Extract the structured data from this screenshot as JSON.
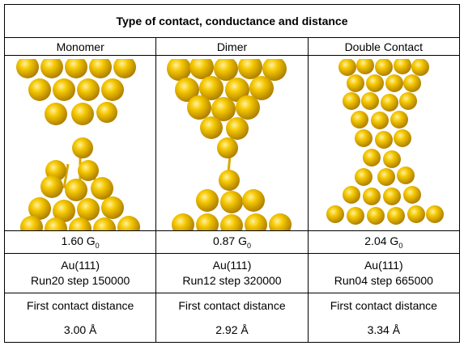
{
  "table": {
    "title": "Type of contact, conductance and distance",
    "columns": [
      "Monomer",
      "Dimer",
      "Double Contact"
    ],
    "conductance": [
      {
        "text": "1.60 G",
        "subscript": "0"
      },
      {
        "text": "0.87 G",
        "subscript": "0"
      },
      {
        "text": "2.04 G",
        "subscript": "0"
      }
    ],
    "surface": [
      "Au(111)",
      "Au(111)",
      "Au(111)"
    ],
    "run": [
      "Run20 step 150000",
      "Run12 step 320000",
      "Run04 step 665000"
    ],
    "distance_label": [
      "First contact distance",
      "First contact distance",
      "First contact distance"
    ],
    "distance": [
      "3.00 Å",
      "2.92 Å",
      "3.34 Å"
    ]
  }
}
